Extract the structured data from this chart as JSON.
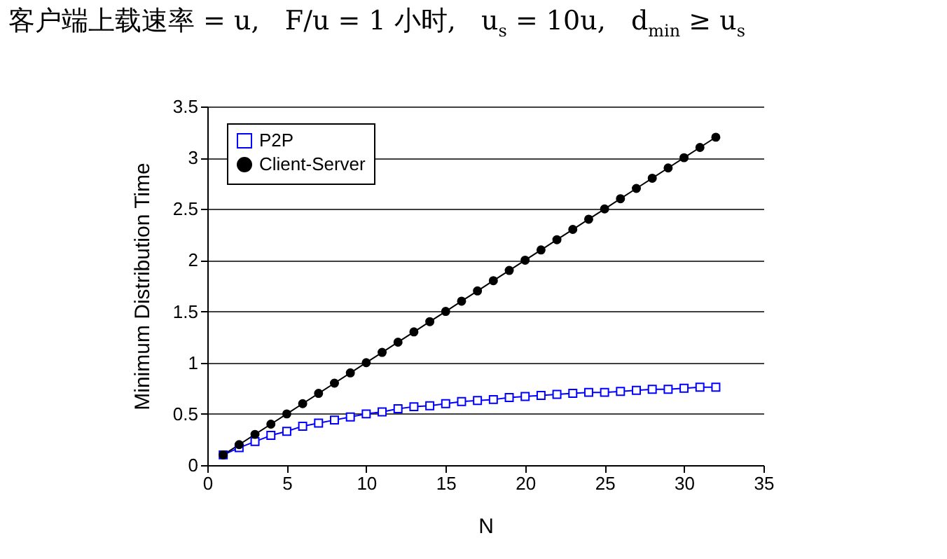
{
  "chart_data": {
    "type": "line",
    "title": "客户端上载速率 = u,   F/u = 1 小时,   u$_{s}$ = 10u,   d$_{min}$ ≥ u$_{s}$",
    "xlabel": "N",
    "ylabel": "Minimum Distribution Time",
    "x": [
      1,
      2,
      3,
      4,
      5,
      6,
      7,
      8,
      9,
      10,
      11,
      12,
      13,
      14,
      15,
      16,
      17,
      18,
      19,
      20,
      21,
      22,
      23,
      24,
      25,
      26,
      27,
      28,
      29,
      30,
      31,
      32
    ],
    "series": [
      {
        "name": "P2P",
        "color": "#0000ff",
        "marker": "square",
        "values": [
          0.1,
          0.17,
          0.23,
          0.29,
          0.33,
          0.38,
          0.41,
          0.44,
          0.47,
          0.5,
          0.52,
          0.55,
          0.57,
          0.58,
          0.6,
          0.62,
          0.63,
          0.64,
          0.66,
          0.67,
          0.68,
          0.69,
          0.7,
          0.71,
          0.71,
          0.72,
          0.73,
          0.74,
          0.74,
          0.75,
          0.76,
          0.76
        ]
      },
      {
        "name": "Client-Server",
        "color": "#000000",
        "marker": "circle",
        "values": [
          0.1,
          0.2,
          0.3,
          0.4,
          0.5,
          0.6,
          0.7,
          0.8,
          0.9,
          1,
          1.1,
          1.2,
          1.3,
          1.4,
          1.5,
          1.6,
          1.7,
          1.8,
          1.9,
          2,
          2.1,
          2.2,
          2.3,
          2.4,
          2.5,
          2.6,
          2.7,
          2.8,
          2.9,
          3,
          3.1,
          3.2
        ]
      }
    ],
    "xlim": [
      0,
      35
    ],
    "xticks": [
      0,
      5,
      10,
      15,
      20,
      25,
      30,
      35
    ],
    "ylim": [
      0,
      3.5
    ],
    "yticks": [
      0,
      0.5,
      1,
      1.5,
      2,
      2.5,
      3,
      3.5
    ],
    "grid": "y",
    "legend": "top left",
    "line_style": "solid"
  }
}
